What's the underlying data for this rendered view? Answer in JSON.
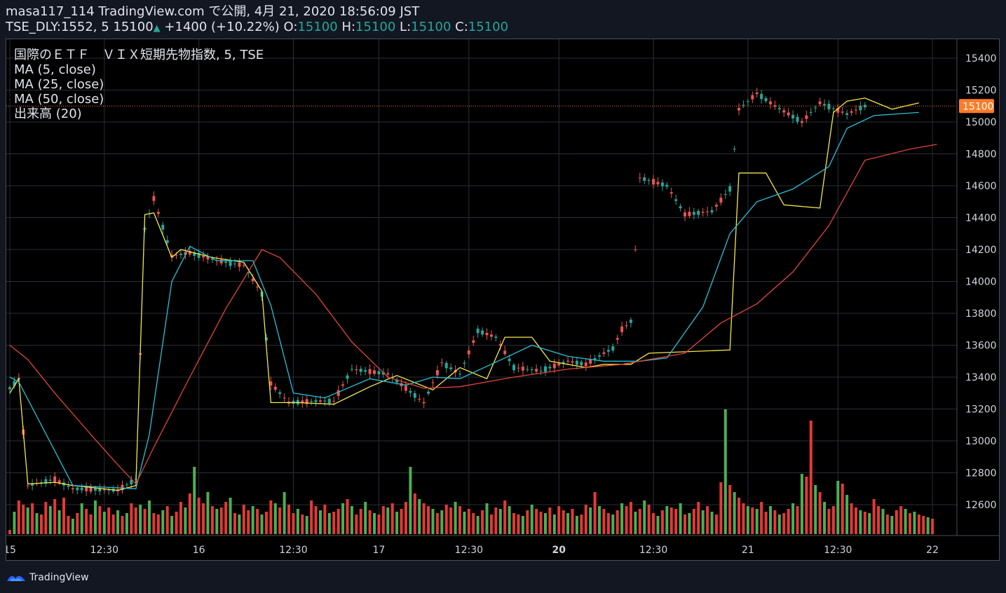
{
  "header": {
    "line1": "masa117_114 TradingView.com で公開, 4月 21, 2020 18:56:09 JST",
    "symbol": "TSE_DLY:1552, 5",
    "last": "15100",
    "arrow": "▲",
    "change": "+1400 (+10.22%)",
    "o_label": "O:",
    "o": "15100",
    "h_label": "H:",
    "h": "15100",
    "l_label": "L:",
    "l": "15100",
    "c_label": "C:",
    "c": "15100"
  },
  "legend": {
    "title": "国際のＥＴＦ　ＶＩＸ短期先物指数, 5, TSE",
    "ma5": "MA (5, close)",
    "ma25": "MA (25, close)",
    "ma50": "MA (50, close)",
    "volume": "出来高 (20)"
  },
  "footer": {
    "brand": "TradingView"
  },
  "colors": {
    "up": "#26a69a",
    "down": "#ef5350",
    "ma5": "#f5e84a",
    "ma25": "#28c0d6",
    "ma50": "#e0443e",
    "vol_up": "#4caf50",
    "vol_down": "#e53935",
    "price_line": "#ff7b29"
  },
  "chart_data": {
    "type": "line",
    "title": "国際のＥＴＦ　ＶＩＸ短期先物指数, 5, TSE",
    "xlabel": "",
    "ylabel": "",
    "y_ticks": [
      12600,
      12800,
      13000,
      13200,
      13400,
      13600,
      13800,
      14000,
      14200,
      14400,
      14600,
      14800,
      15000,
      15200,
      15400
    ],
    "x_ticks": [
      "15",
      "12:30",
      "16",
      "12:30",
      "17",
      "12:30",
      "20",
      "12:30",
      "21",
      "12:30",
      "22"
    ],
    "bold_x_ticks": [
      "20"
    ],
    "ylim": [
      12420,
      15480
    ],
    "current_price": "15100",
    "ma_series": [
      {
        "name": "MA (5, close)",
        "points": [
          [
            0,
            13300
          ],
          [
            2,
            13390
          ],
          [
            4,
            12730
          ],
          [
            10,
            12740
          ],
          [
            14,
            12720
          ],
          [
            24,
            12690
          ],
          [
            28,
            12720
          ],
          [
            30,
            14420
          ],
          [
            32,
            14430
          ],
          [
            36,
            14150
          ],
          [
            38,
            14200
          ],
          [
            45,
            14150
          ],
          [
            52,
            14120
          ],
          [
            56,
            13940
          ],
          [
            58,
            13240
          ],
          [
            64,
            13240
          ],
          [
            72,
            13230
          ],
          [
            80,
            13340
          ],
          [
            86,
            13410
          ],
          [
            94,
            13320
          ],
          [
            100,
            13460
          ],
          [
            106,
            13390
          ],
          [
            110,
            13650
          ],
          [
            116,
            13650
          ],
          [
            120,
            13500
          ],
          [
            128,
            13460
          ],
          [
            132,
            13480
          ],
          [
            138,
            13480
          ],
          [
            142,
            13550
          ],
          [
            160,
            13570
          ],
          [
            162,
            14680
          ],
          [
            168,
            14680
          ],
          [
            172,
            14480
          ],
          [
            180,
            14460
          ],
          [
            183,
            15060
          ],
          [
            186,
            15130
          ],
          [
            190,
            15150
          ],
          [
            196,
            15080
          ],
          [
            202,
            15120
          ]
        ]
      },
      {
        "name": "MA (25, close)",
        "points": [
          [
            0,
            13400
          ],
          [
            2,
            13370
          ],
          [
            14,
            12720
          ],
          [
            28,
            12700
          ],
          [
            31,
            13040
          ],
          [
            36,
            14000
          ],
          [
            40,
            14220
          ],
          [
            46,
            14130
          ],
          [
            54,
            14130
          ],
          [
            58,
            13850
          ],
          [
            63,
            13300
          ],
          [
            70,
            13270
          ],
          [
            80,
            13390
          ],
          [
            88,
            13350
          ],
          [
            94,
            13400
          ],
          [
            100,
            13390
          ],
          [
            110,
            13520
          ],
          [
            116,
            13600
          ],
          [
            124,
            13530
          ],
          [
            132,
            13500
          ],
          [
            140,
            13500
          ],
          [
            146,
            13520
          ],
          [
            154,
            13840
          ],
          [
            160,
            14300
          ],
          [
            166,
            14500
          ],
          [
            174,
            14580
          ],
          [
            182,
            14720
          ],
          [
            186,
            14960
          ],
          [
            192,
            15040
          ],
          [
            202,
            15060
          ]
        ]
      },
      {
        "name": "MA (50, close)",
        "points": [
          [
            0,
            13600
          ],
          [
            4,
            13510
          ],
          [
            10,
            13300
          ],
          [
            18,
            13040
          ],
          [
            24,
            12850
          ],
          [
            28,
            12730
          ],
          [
            32,
            12960
          ],
          [
            40,
            13400
          ],
          [
            48,
            13830
          ],
          [
            56,
            14200
          ],
          [
            60,
            14150
          ],
          [
            68,
            13920
          ],
          [
            76,
            13620
          ],
          [
            84,
            13400
          ],
          [
            92,
            13330
          ],
          [
            100,
            13340
          ],
          [
            112,
            13400
          ],
          [
            124,
            13450
          ],
          [
            136,
            13480
          ],
          [
            150,
            13550
          ],
          [
            158,
            13740
          ],
          [
            166,
            13860
          ],
          [
            174,
            14060
          ],
          [
            182,
            14350
          ],
          [
            190,
            14760
          ],
          [
            200,
            14830
          ],
          [
            206,
            14860
          ]
        ]
      }
    ],
    "price_path": [
      [
        0,
        13330
      ],
      [
        2,
        13390
      ],
      [
        4,
        12720
      ],
      [
        10,
        12760
      ],
      [
        14,
        12700
      ],
      [
        24,
        12690
      ],
      [
        28,
        12760
      ],
      [
        30,
        14330
      ],
      [
        32,
        14520
      ],
      [
        36,
        14160
      ],
      [
        40,
        14180
      ],
      [
        46,
        14130
      ],
      [
        52,
        14100
      ],
      [
        56,
        13920
      ],
      [
        58,
        13360
      ],
      [
        62,
        13240
      ],
      [
        68,
        13250
      ],
      [
        72,
        13250
      ],
      [
        76,
        13450
      ],
      [
        84,
        13420
      ],
      [
        92,
        13240
      ],
      [
        96,
        13490
      ],
      [
        100,
        13420
      ],
      [
        104,
        13690
      ],
      [
        108,
        13650
      ],
      [
        112,
        13460
      ],
      [
        118,
        13440
      ],
      [
        124,
        13500
      ],
      [
        128,
        13480
      ],
      [
        132,
        13550
      ],
      [
        134,
        13580
      ],
      [
        136,
        13700
      ],
      [
        138,
        13750
      ],
      [
        140,
        14650
      ],
      [
        146,
        14600
      ],
      [
        150,
        14420
      ],
      [
        156,
        14440
      ],
      [
        160,
        14580
      ],
      [
        162,
        15080
      ],
      [
        166,
        15180
      ],
      [
        170,
        15100
      ],
      [
        176,
        15000
      ],
      [
        180,
        15120
      ],
      [
        186,
        15050
      ],
      [
        190,
        15100
      ]
    ],
    "volume_bars": [
      6,
      32,
      48,
      42,
      38,
      44,
      30,
      28,
      46,
      40,
      50,
      34,
      52,
      26,
      22,
      30,
      44,
      36,
      28,
      48,
      40,
      32,
      38,
      28,
      34,
      26,
      30,
      44,
      38,
      42,
      36,
      48,
      30,
      28,
      34,
      40,
      26,
      32,
      46,
      38,
      58,
      96,
      52,
      44,
      60,
      40,
      36,
      38,
      46,
      52,
      30,
      28,
      42,
      34,
      40,
      36,
      28,
      32,
      48,
      44,
      38,
      60,
      42,
      30,
      36,
      28,
      26,
      48,
      40,
      34,
      42,
      30,
      32,
      36,
      44,
      50,
      40,
      28,
      36,
      46,
      34,
      30,
      28,
      40,
      38,
      44,
      32,
      36,
      46,
      96,
      58,
      50,
      44,
      40,
      36,
      30,
      34,
      42,
      38,
      46,
      40,
      32,
      36,
      30,
      26,
      34,
      44,
      28,
      38,
      36,
      48,
      40,
      30,
      28,
      26,
      34,
      42,
      36,
      32,
      30,
      38,
      28,
      40,
      34,
      30,
      36,
      26,
      28,
      42,
      38,
      60,
      40,
      36,
      30,
      28,
      34,
      44,
      40,
      46,
      32,
      36,
      48,
      42,
      30,
      26,
      34,
      40,
      38,
      36,
      44,
      28,
      30,
      36,
      46,
      34,
      40,
      32,
      28,
      74,
      178,
      70,
      60,
      52,
      44,
      40,
      38,
      36,
      46,
      32,
      40,
      34,
      28,
      30,
      36,
      44,
      40,
      86,
      82,
      162,
      70,
      60,
      46,
      36,
      40,
      76,
      72,
      56,
      44,
      38,
      34,
      32,
      30,
      50,
      40,
      36,
      28,
      26,
      34,
      40,
      36,
      30,
      32,
      28,
      26,
      24,
      22
    ]
  }
}
